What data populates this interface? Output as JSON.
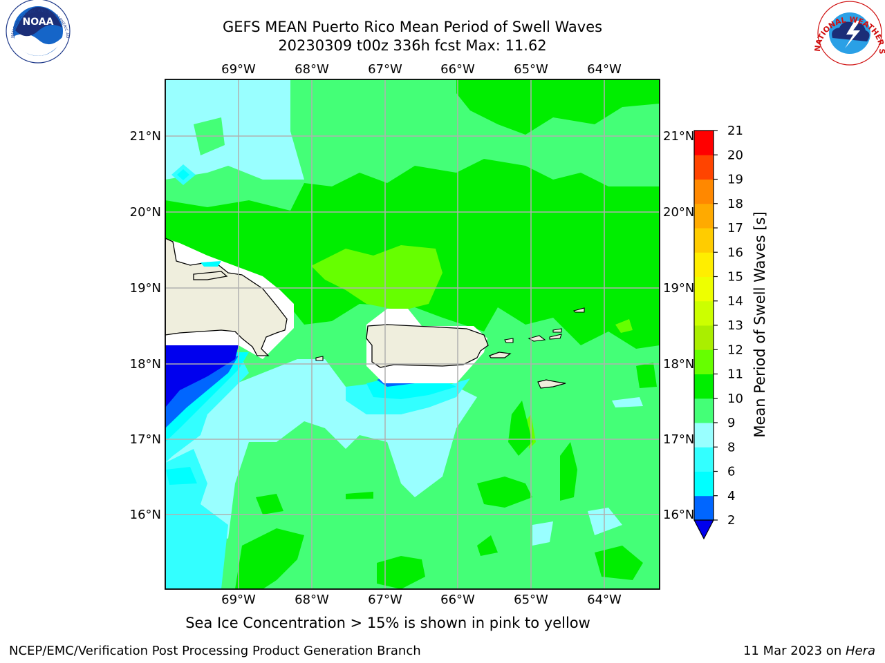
{
  "header": {
    "title_line1": "GEFS MEAN Puerto Rico Mean Period of Swell Waves",
    "title_line2": "20230309 t00z 336h fcst   Max: 11.62"
  },
  "logos": {
    "left": "NOAA",
    "left_ring": "NATIONAL OCEANIC AND ATMOSPHERIC ADMINISTRATION · U.S. DEPARTMENT OF COMMERCE",
    "right_ring": "NATIONAL WEATHER SERVICE"
  },
  "map": {
    "lon_labels": [
      "69°W",
      "68°W",
      "67°W",
      "66°W",
      "65°W",
      "64°W"
    ],
    "lat_labels": [
      "21°N",
      "20°N",
      "19°N",
      "18°N",
      "17°N",
      "16°N"
    ],
    "lon_values": [
      -69,
      -68,
      -67,
      -66,
      -65,
      -64
    ],
    "lat_values": [
      21,
      20,
      19,
      18,
      17,
      16
    ],
    "extent": {
      "lon_min": -70.0,
      "lon_max": -63.3,
      "lat_min": 15.0,
      "lat_max": 21.75
    },
    "colors": {
      "land": "#efeedd",
      "ocean_bg": "#33ff66"
    }
  },
  "colorbar": {
    "label": "Mean Period of Swell Waves [s]",
    "ticks": [
      "2",
      "4",
      "6",
      "8",
      "9",
      "10",
      "11",
      "12",
      "13",
      "14",
      "15",
      "16",
      "17",
      "18",
      "19",
      "20",
      "21"
    ],
    "colors": [
      "#0000ff",
      "#0066ff",
      "#00ffff",
      "#33ffff",
      "#99ffff",
      "#44ff77",
      "#00ee00",
      "#66ff00",
      "#aaee00",
      "#ccff00",
      "#eeff00",
      "#ffee00",
      "#ffcc00",
      "#ffaa00",
      "#ff8800",
      "#ff4400",
      "#ff0000"
    ],
    "under_color": "#0000ee"
  },
  "note": "Sea Ice Concentration > 15% is shown in pink to yellow",
  "footer": {
    "left": "NCEP/EMC/Verification Post Processing Product Generation Branch",
    "date": "11 Mar 2023 on ",
    "machine": "Hera"
  }
}
